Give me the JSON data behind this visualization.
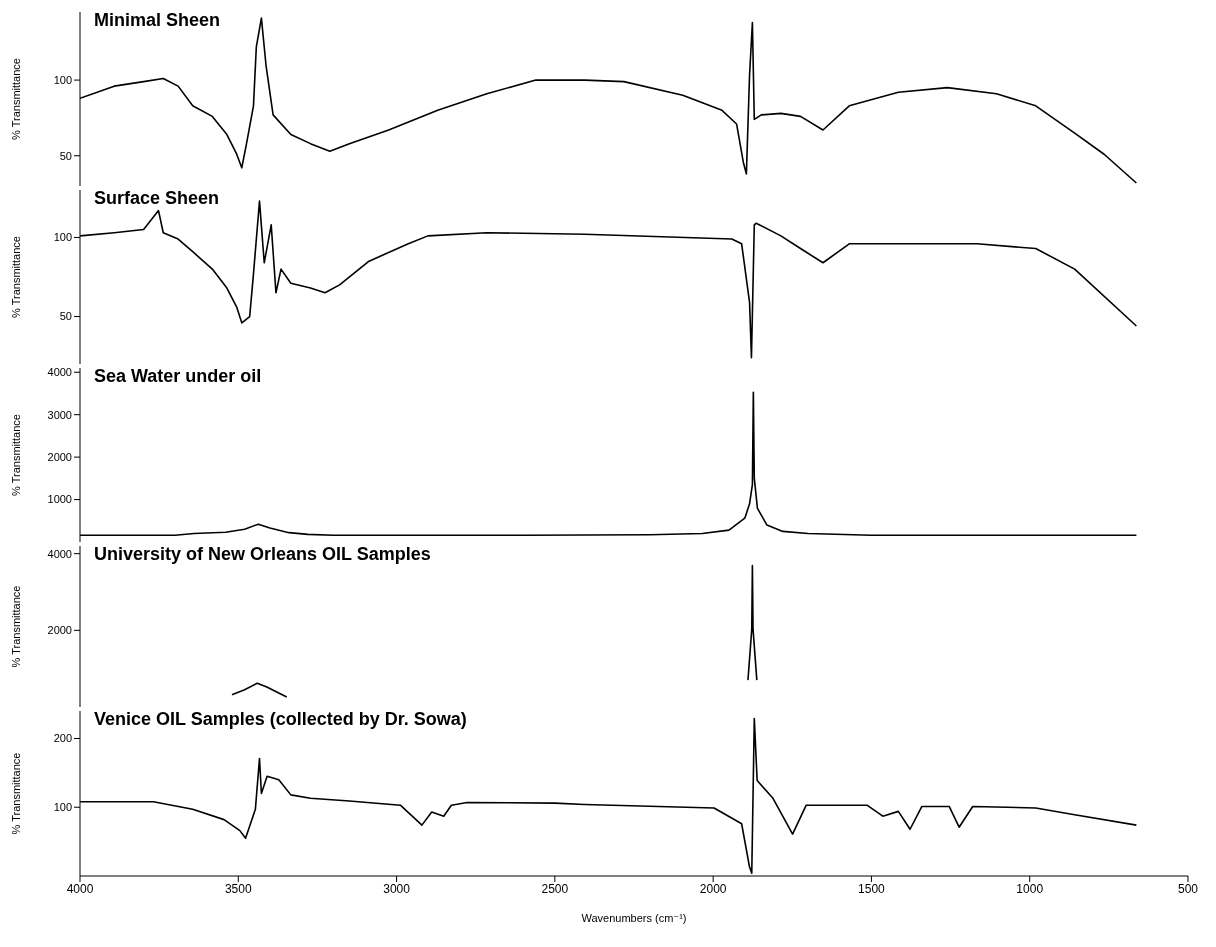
{
  "chart_data": [
    {
      "type": "line",
      "title": "Minimal Sheen",
      "ylabel": "% Transmittance",
      "xlim": [
        4000,
        500
      ],
      "ylim": [
        30,
        145
      ],
      "yticks": [
        50,
        100
      ],
      "tick_labels": "y",
      "color": "#000000",
      "x": [
        4000,
        3892,
        3799,
        3737,
        3690,
        3644,
        3582,
        3536,
        3505,
        3489,
        3474,
        3452,
        3443,
        3427,
        3412,
        3390,
        3334,
        3272,
        3211,
        3149,
        3025,
        2870,
        2715,
        2560,
        2406,
        2282,
        2096,
        1972,
        1926,
        1904,
        1895,
        1885,
        1876,
        1870,
        1848,
        1786,
        1724,
        1653,
        1570,
        1415,
        1260,
        1105,
        981,
        858,
        765,
        663
      ],
      "values": [
        88,
        96,
        99,
        101,
        96,
        83,
        76,
        64,
        51,
        42,
        58,
        83,
        122,
        141,
        109,
        77,
        64,
        58,
        53,
        58,
        67,
        80,
        91,
        100,
        100,
        99,
        90,
        80,
        71,
        45,
        38,
        103,
        138,
        74,
        77,
        78,
        76,
        67,
        83,
        92,
        95,
        91,
        83,
        65,
        51,
        32
      ]
    },
    {
      "type": "line",
      "title": "Surface Sheen",
      "ylabel": "% Transmittance",
      "xlim": [
        4000,
        500
      ],
      "ylim": [
        20,
        130
      ],
      "yticks": [
        50,
        100
      ],
      "tick_labels": "y",
      "color": "#000000",
      "x": [
        4000,
        3892,
        3799,
        3752,
        3737,
        3690,
        3644,
        3582,
        3536,
        3505,
        3489,
        3464,
        3452,
        3433,
        3418,
        3396,
        3381,
        3365,
        3334,
        3272,
        3226,
        3180,
        3087,
        2963,
        2901,
        2715,
        2406,
        1941,
        1910,
        1885,
        1879,
        1870,
        1864,
        1786,
        1724,
        1653,
        1570,
        1167,
        981,
        858,
        663
      ],
      "values": [
        101,
        103,
        105,
        117,
        103,
        99,
        91,
        80,
        68,
        56,
        46,
        50,
        77,
        123,
        84,
        108,
        65,
        80,
        71,
        68,
        65,
        70,
        85,
        96,
        101,
        103,
        102,
        99,
        96,
        59,
        24,
        108,
        109,
        101,
        93,
        84,
        96,
        96,
        93,
        80,
        44
      ]
    },
    {
      "type": "line",
      "title": "Sea Water under oil",
      "ylabel": "% Transmittance",
      "xlim": [
        4000,
        500
      ],
      "ylim": [
        0,
        4100
      ],
      "yticks": [
        1000,
        2000,
        3000,
        4000
      ],
      "tick_labels": "y",
      "color": "#000000",
      "x": [
        4000,
        3700,
        3640,
        3540,
        3480,
        3437,
        3400,
        3340,
        3280,
        3200,
        2600,
        2200,
        2034,
        1950,
        1900,
        1885,
        1876,
        1873,
        1870,
        1860,
        1830,
        1780,
        1700,
        1500,
        1000,
        663
      ],
      "values": [
        160,
        160,
        200,
        230,
        300,
        420,
        330,
        220,
        180,
        160,
        160,
        170,
        200,
        280,
        560,
        900,
        1350,
        3530,
        1500,
        790,
        400,
        250,
        200,
        160,
        160,
        160
      ]
    },
    {
      "type": "line",
      "title": "University of New Orleans OIL Samples",
      "ylabel": "% Transmittance",
      "xlim": [
        4000,
        500
      ],
      "ylim": [
        0,
        4200
      ],
      "yticks": [
        2000,
        4000
      ],
      "tick_labels": "y",
      "color": "#000000",
      "x": [
        3520,
        3480,
        3440,
        3410,
        3347,
        2600,
        1890,
        1878,
        1876,
        1874,
        1862
      ],
      "values": [
        320,
        450,
        620,
        520,
        260,
        null,
        700,
        2030,
        3690,
        2030,
        700
      ]
    },
    {
      "type": "line",
      "title": "Venice OIL Samples (collected by Dr. Sowa)",
      "ylabel": "% Transmittance",
      "xlabel": "Wavenumbers (cm⁻¹)",
      "xlim": [
        4000,
        500
      ],
      "ylim": [
        0,
        240
      ],
      "xticks": [
        4000,
        3500,
        3000,
        2500,
        2000,
        1500,
        1000,
        500
      ],
      "yticks": [
        100,
        200
      ],
      "color": "#000000",
      "x": [
        4000,
        3768,
        3644,
        3545,
        3495,
        3477,
        3446,
        3433,
        3427,
        3409,
        3372,
        3334,
        3272,
        3149,
        2988,
        2920,
        2889,
        2851,
        2827,
        2777,
        2500,
        2406,
        1997,
        1910,
        1885,
        1878,
        1870,
        1861,
        1811,
        1749,
        1706,
        1514,
        1464,
        1415,
        1378,
        1341,
        1254,
        1223,
        1180,
        981,
        858,
        663
      ],
      "values": [
        108,
        108,
        97,
        82,
        66,
        55,
        97,
        171,
        120,
        145,
        140,
        118,
        113,
        109,
        103,
        74,
        93,
        87,
        103,
        107,
        106,
        104,
        99,
        76,
        13,
        4,
        229,
        139,
        113,
        61,
        103,
        103,
        87,
        94,
        68,
        101,
        101,
        71,
        101,
        99,
        89,
        74
      ]
    }
  ]
}
